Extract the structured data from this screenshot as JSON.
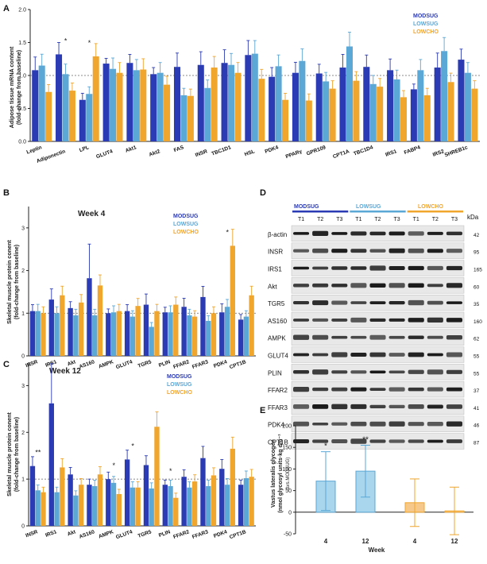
{
  "colors": {
    "modsug": "#2b3bb3",
    "lowsug": "#5ba7d6",
    "lowcho": "#f0a52c",
    "lightblue": "#a9d6ec",
    "lightorange": "#f6c98b"
  },
  "legend": [
    "MODSUG",
    "LOWSUG",
    "LOWCHO"
  ],
  "chart_data": [
    {
      "panel": "A",
      "type": "bar",
      "ylabel_line1": "Adipose tissue  mRNA content",
      "ylabel_line2": "(fold-change from baseline)",
      "ylim": [
        0,
        2.0
      ],
      "yticks": [
        "0.0",
        "0.5",
        "1.0",
        "1.5",
        "2.0"
      ],
      "categories": [
        "Leptin",
        "Adiponectin",
        "LPL",
        "GLUT4",
        "Akt1",
        "Akt2",
        "FAS",
        "INSR",
        "TBC1D1",
        "HSL",
        "PDK4",
        "PPARγ",
        "GPR109",
        "CPT1A",
        "TBC1D4",
        "IRS1",
        "FABP4",
        "IRS2",
        "SHREB1c"
      ],
      "series": [
        {
          "name": "MODSUG",
          "values": [
            1.08,
            1.32,
            0.63,
            1.18,
            1.19,
            1.02,
            1.13,
            1.16,
            1.19,
            1.31,
            0.98,
            1.04,
            1.03,
            1.12,
            1.13,
            1.08,
            0.79,
            1.12,
            1.24
          ],
          "err": [
            0.2,
            0.18,
            0.1,
            0.08,
            0.13,
            0.1,
            0.21,
            0.2,
            0.2,
            0.22,
            0.14,
            0.16,
            0.14,
            0.2,
            0.18,
            0.17,
            0.08,
            0.22,
            0.16
          ]
        },
        {
          "name": "LOWSUG",
          "values": [
            1.15,
            1.02,
            0.72,
            1.1,
            1.08,
            1.04,
            0.7,
            0.81,
            1.16,
            1.33,
            1.14,
            1.22,
            0.91,
            1.44,
            0.87,
            0.94,
            1.08,
            1.37,
            1.04
          ]
        },
        {
          "name": "LOWCHO",
          "values": [
            0.75,
            0.77,
            1.29,
            1.04,
            1.09,
            0.86,
            0.69,
            1.12,
            1.04,
            0.95,
            0.63,
            0.62,
            0.8,
            0.92,
            0.83,
            0.67,
            0.7,
            0.9,
            0.8
          ]
        }
      ],
      "annotations": [
        {
          "category": "Adiponectin",
          "text": "*"
        },
        {
          "category": "LPL",
          "text": "*"
        }
      ]
    },
    {
      "panel": "B",
      "type": "bar",
      "subtitle": "Week 4",
      "ylabel_line1": "Skeletal muscle protein conent",
      "ylabel_line2": "(fold-change from baseline)",
      "ylim": [
        0,
        3.5
      ],
      "yticks": [
        "0",
        "1",
        "2",
        "3"
      ],
      "categories": [
        "INSR",
        "IRS1",
        "Akt",
        "AS160",
        "AMPK",
        "GLUT4",
        "TGR5",
        "PLIN",
        "FFAR2",
        "FFAR3",
        "PDK4",
        "CPT1B"
      ],
      "series": [
        {
          "name": "MODSUG",
          "values": [
            1.05,
            1.32,
            1.12,
            1.82,
            1.0,
            1.05,
            1.2,
            1.02,
            1.15,
            1.38,
            1.02,
            0.85
          ],
          "err": [
            0.15,
            0.25,
            0.15,
            0.8,
            0.1,
            0.15,
            0.25,
            0.12,
            0.2,
            0.25,
            0.2,
            0.12
          ]
        },
        {
          "name": "LOWSUG",
          "values": [
            1.05,
            1.0,
            0.95,
            0.95,
            1.02,
            0.92,
            0.68,
            1.02,
            0.95,
            0.82,
            1.15,
            0.92
          ]
        },
        {
          "name": "LOWCHO",
          "values": [
            1.0,
            1.42,
            1.25,
            1.65,
            1.05,
            1.17,
            1.05,
            1.2,
            0.92,
            1.0,
            2.58,
            1.42
          ]
        }
      ],
      "annotations": [
        {
          "category": "PDK4",
          "text": "*"
        }
      ]
    },
    {
      "panel": "C",
      "type": "bar",
      "subtitle": "Week 12",
      "ylabel_line1": "Skeletal muscle protein conent",
      "ylabel_line2": "(fold-change from baseline)",
      "ylim": [
        0,
        3.5
      ],
      "yticks": [
        "0",
        "1",
        "2",
        "3"
      ],
      "categories": [
        "INSR",
        "IRS1",
        "Akt",
        "AS160",
        "AMPK",
        "GLUT4",
        "TGR5",
        "PLIN",
        "FFAR2",
        "FFAR3",
        "PDK4",
        "CPT1B"
      ],
      "series": [
        {
          "name": "MODSUG",
          "values": [
            1.28,
            2.62,
            1.1,
            0.88,
            1.0,
            1.42,
            1.3,
            0.88,
            1.05,
            1.45,
            1.22,
            0.88
          ],
          "err": [
            0.2,
            0.85,
            0.15,
            0.12,
            0.15,
            0.2,
            0.2,
            0.1,
            0.15,
            0.25,
            0.2,
            0.1
          ]
        },
        {
          "name": "LOWSUG",
          "values": [
            0.76,
            0.72,
            0.65,
            0.85,
            0.92,
            0.82,
            0.8,
            0.85,
            0.82,
            0.85,
            0.88,
            1.02
          ]
        },
        {
          "name": "LOWCHO",
          "values": [
            0.72,
            1.25,
            0.88,
            1.1,
            0.68,
            0.82,
            2.12,
            0.6,
            0.95,
            1.08,
            1.65,
            1.05
          ]
        }
      ],
      "annotations": [
        {
          "category": "INSR",
          "text": "**"
        },
        {
          "category": "AMPK",
          "text": "*"
        },
        {
          "category": "GLUT4",
          "text": "*"
        },
        {
          "category": "PLIN",
          "text": "*"
        }
      ]
    },
    {
      "panel": "E",
      "type": "bar",
      "ylabel_line1": "Vastus lateralis glycogen",
      "ylabel_line2": "(nmol glycosyl units·kg dm⁻¹",
      "ylabel_line3": "Δvs.MODSUG)",
      "ylim": [
        -50,
        200
      ],
      "yticks": [
        "-50",
        "0",
        "50",
        "100",
        "150",
        "200"
      ],
      "xlabel": "Week",
      "categories": [
        "4",
        "12",
        "4",
        "12"
      ],
      "values": [
        72,
        95,
        22,
        3
      ],
      "err": [
        68,
        60,
        55,
        55
      ],
      "groups": [
        "LOWSUG",
        "LOWSUG",
        "LOWCHO",
        "LOWCHO"
      ],
      "annotations": [
        {
          "index": 0,
          "text": "*"
        },
        {
          "index": 1,
          "text": "**"
        }
      ]
    }
  ],
  "blot": {
    "panel": "D",
    "groups": [
      "MODSUG",
      "LOWSUG",
      "LOWCHO"
    ],
    "timepoints": [
      "T1",
      "T2",
      "T3",
      "T1",
      "T2",
      "T3",
      "T1",
      "T2",
      "T3"
    ],
    "unit": "kDa",
    "proteins": [
      {
        "name": "β-actin",
        "kda": "42"
      },
      {
        "name": "INSR",
        "kda": "95"
      },
      {
        "name": "IRS1",
        "kda": "165"
      },
      {
        "name": "Akt",
        "kda": "60"
      },
      {
        "name": "TGR5",
        "kda": "35"
      },
      {
        "name": "AS160",
        "kda": "160"
      },
      {
        "name": "AMPK",
        "kda": "62"
      },
      {
        "name": "GLUT4",
        "kda": "55"
      },
      {
        "name": "PLIN",
        "kda": "55"
      },
      {
        "name": "FFAR2",
        "kda": "37"
      },
      {
        "name": "FFAR3",
        "kda": "41"
      },
      {
        "name": "PDK4",
        "kda": "46"
      },
      {
        "name": "CPT1B",
        "kda": "87"
      }
    ]
  }
}
